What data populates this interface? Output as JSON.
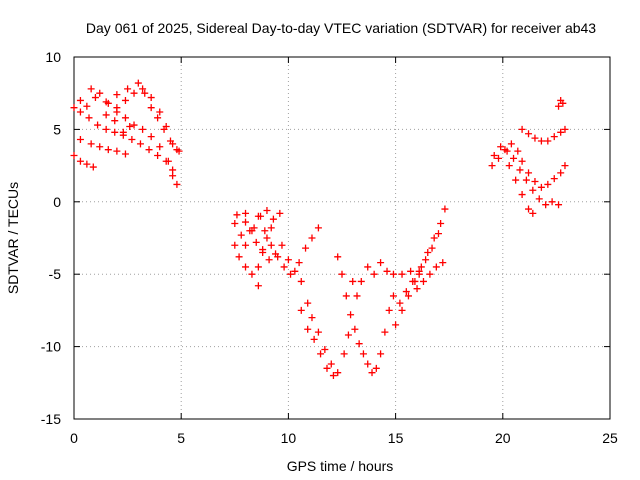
{
  "chart_data": {
    "type": "scatter",
    "title": "Day 061 of 2025, Sidereal Day-to-day VTEC variation (SDTVAR) for receiver ab43",
    "xlabel": "GPS time / hours",
    "ylabel": "SDTVAR / TECUs",
    "xlim": [
      0,
      25
    ],
    "ylim": [
      -15,
      10
    ],
    "xticks": [
      "0",
      "5",
      "10",
      "15",
      "20",
      "25"
    ],
    "yticks": [
      "-15",
      "-10",
      "-5",
      "0",
      "5",
      "10"
    ],
    "grid": true,
    "marker": "+",
    "marker_color": "#ff0000",
    "series": [
      {
        "points": [
          [
            0.0,
            6.5
          ],
          [
            0.3,
            7.0
          ],
          [
            0.6,
            6.6
          ],
          [
            1.0,
            7.2
          ],
          [
            1.5,
            6.9
          ],
          [
            2.0,
            7.4
          ],
          [
            2.5,
            7.8
          ],
          [
            3.0,
            8.2
          ],
          [
            3.3,
            7.5
          ],
          [
            3.6,
            6.5
          ],
          [
            3.9,
            5.8
          ],
          [
            4.2,
            5.0
          ],
          [
            4.5,
            4.2
          ],
          [
            4.8,
            3.6
          ]
        ]
      },
      {
        "points": [
          [
            0.8,
            7.8
          ],
          [
            1.2,
            7.5
          ],
          [
            1.6,
            6.8
          ],
          [
            2.0,
            6.2
          ],
          [
            2.4,
            5.8
          ],
          [
            2.8,
            5.3
          ],
          [
            3.2,
            5.0
          ],
          [
            3.6,
            4.5
          ],
          [
            4.0,
            3.8
          ],
          [
            4.4,
            2.8
          ],
          [
            4.6,
            1.8
          ],
          [
            4.8,
            1.2
          ]
        ]
      },
      {
        "points": [
          [
            0.3,
            6.2
          ],
          [
            0.7,
            5.8
          ],
          [
            1.1,
            5.3
          ],
          [
            1.5,
            5.0
          ],
          [
            1.9,
            4.8
          ],
          [
            2.3,
            4.6
          ],
          [
            2.7,
            4.3
          ],
          [
            3.1,
            4.0
          ],
          [
            3.5,
            3.6
          ],
          [
            3.9,
            3.2
          ],
          [
            4.3,
            2.8
          ],
          [
            4.6,
            2.2
          ]
        ]
      },
      {
        "points": [
          [
            1.5,
            6.0
          ],
          [
            2.0,
            6.5
          ],
          [
            2.4,
            7.0
          ],
          [
            2.8,
            7.5
          ],
          [
            3.2,
            7.8
          ],
          [
            3.6,
            7.2
          ],
          [
            4.0,
            6.2
          ],
          [
            4.3,
            5.2
          ],
          [
            4.6,
            4.0
          ],
          [
            4.9,
            3.5
          ]
        ]
      },
      {
        "points": [
          [
            0.0,
            3.2
          ],
          [
            0.3,
            2.8
          ],
          [
            0.6,
            2.6
          ],
          [
            0.9,
            2.4
          ]
        ]
      },
      {
        "points": [
          [
            0.3,
            4.3
          ],
          [
            0.8,
            4.0
          ],
          [
            1.2,
            3.8
          ],
          [
            1.6,
            3.6
          ],
          [
            2.0,
            3.5
          ],
          [
            2.4,
            3.3
          ],
          [
            2.3,
            4.8
          ],
          [
            2.6,
            5.2
          ],
          [
            1.9,
            5.6
          ]
        ]
      },
      {
        "points": [
          [
            7.5,
            -1.5
          ],
          [
            7.8,
            -2.3
          ],
          [
            8.0,
            -3.0
          ],
          [
            8.3,
            -2.0
          ],
          [
            8.6,
            -1.0
          ],
          [
            8.9,
            -2.0
          ],
          [
            9.2,
            -3.0
          ],
          [
            9.5,
            -3.8
          ],
          [
            9.8,
            -4.5
          ],
          [
            10.1,
            -5.0
          ],
          [
            10.5,
            -4.2
          ],
          [
            10.8,
            -3.2
          ],
          [
            11.1,
            -2.5
          ],
          [
            11.4,
            -1.8
          ]
        ]
      },
      {
        "points": [
          [
            7.5,
            -3.0
          ],
          [
            7.7,
            -3.8
          ],
          [
            8.0,
            -4.5
          ],
          [
            8.3,
            -5.0
          ],
          [
            8.6,
            -4.5
          ],
          [
            8.8,
            -3.5
          ],
          [
            9.0,
            -2.5
          ],
          [
            9.3,
            -1.2
          ],
          [
            9.6,
            -0.8
          ]
        ]
      },
      {
        "points": [
          [
            8.0,
            -0.8
          ],
          [
            8.2,
            -2.0
          ],
          [
            8.5,
            -2.8
          ],
          [
            8.8,
            -3.3
          ],
          [
            9.1,
            -4.0
          ],
          [
            9.4,
            -3.6
          ],
          [
            9.7,
            -3.0
          ]
        ]
      },
      {
        "points": [
          [
            7.6,
            -0.9
          ],
          [
            8.0,
            -1.4
          ],
          [
            8.4,
            -1.8
          ],
          [
            8.7,
            -1.0
          ],
          [
            9.0,
            -0.6
          ],
          [
            9.2,
            -1.8
          ],
          [
            8.6,
            -5.8
          ]
        ]
      },
      {
        "points": [
          [
            10.0,
            -4.0
          ],
          [
            10.3,
            -4.8
          ],
          [
            10.6,
            -5.5
          ],
          [
            10.9,
            -7.0
          ],
          [
            11.1,
            -8.0
          ],
          [
            11.4,
            -9.0
          ],
          [
            11.7,
            -10.2
          ],
          [
            12.0,
            -11.2
          ],
          [
            12.3,
            -11.8
          ],
          [
            12.6,
            -10.5
          ],
          [
            12.8,
            -9.2
          ]
        ]
      },
      {
        "points": [
          [
            10.6,
            -7.5
          ],
          [
            10.9,
            -8.8
          ],
          [
            11.2,
            -9.5
          ],
          [
            11.5,
            -10.5
          ],
          [
            11.8,
            -11.5
          ],
          [
            12.1,
            -12.0
          ]
        ]
      },
      {
        "points": [
          [
            12.3,
            -3.8
          ],
          [
            12.5,
            -5.0
          ],
          [
            12.7,
            -6.5
          ],
          [
            12.9,
            -7.8
          ],
          [
            13.1,
            -8.8
          ],
          [
            13.3,
            -9.8
          ],
          [
            13.5,
            -10.5
          ],
          [
            13.7,
            -11.2
          ],
          [
            13.9,
            -11.8
          ],
          [
            14.1,
            -11.5
          ],
          [
            14.3,
            -10.5
          ],
          [
            14.5,
            -9.0
          ],
          [
            14.7,
            -7.5
          ],
          [
            14.9,
            -6.5
          ]
        ]
      },
      {
        "points": [
          [
            13.0,
            -5.5
          ],
          [
            13.2,
            -6.5
          ],
          [
            13.4,
            -5.5
          ],
          [
            13.7,
            -4.5
          ],
          [
            14.0,
            -5.0
          ],
          [
            14.3,
            -4.2
          ],
          [
            14.6,
            -4.8
          ],
          [
            14.9,
            -5.0
          ],
          [
            15.3,
            -5.0
          ],
          [
            15.7,
            -4.8
          ],
          [
            16.1,
            -5.0
          ]
        ]
      },
      {
        "points": [
          [
            15.0,
            -8.5
          ],
          [
            15.3,
            -7.5
          ],
          [
            15.6,
            -6.5
          ],
          [
            15.9,
            -5.5
          ],
          [
            16.2,
            -4.5
          ],
          [
            16.5,
            -3.5
          ],
          [
            16.8,
            -2.5
          ],
          [
            17.1,
            -1.5
          ],
          [
            17.3,
            -0.5
          ]
        ]
      },
      {
        "points": [
          [
            15.2,
            -7.0
          ],
          [
            15.5,
            -6.2
          ],
          [
            15.8,
            -5.5
          ],
          [
            16.1,
            -4.8
          ],
          [
            16.4,
            -4.0
          ],
          [
            16.7,
            -3.2
          ],
          [
            17.0,
            -2.2
          ]
        ]
      },
      {
        "points": [
          [
            16.0,
            -6.0
          ],
          [
            16.3,
            -5.5
          ],
          [
            16.6,
            -5.0
          ],
          [
            16.9,
            -4.5
          ],
          [
            17.2,
            -4.2
          ]
        ]
      },
      {
        "points": [
          [
            19.5,
            2.5
          ],
          [
            19.8,
            3.0
          ],
          [
            20.1,
            3.6
          ],
          [
            20.4,
            4.0
          ],
          [
            20.7,
            3.5
          ],
          [
            20.9,
            2.8
          ],
          [
            21.2,
            2.0
          ],
          [
            21.5,
            1.4
          ],
          [
            21.8,
            1.0
          ],
          [
            22.1,
            1.2
          ],
          [
            22.4,
            1.6
          ],
          [
            22.7,
            2.0
          ],
          [
            22.9,
            2.5
          ]
        ]
      },
      {
        "points": [
          [
            19.6,
            3.2
          ],
          [
            19.9,
            3.8
          ],
          [
            20.2,
            3.5
          ],
          [
            20.5,
            3.0
          ],
          [
            20.8,
            2.2
          ],
          [
            21.1,
            1.5
          ],
          [
            21.4,
            0.8
          ],
          [
            21.7,
            0.2
          ],
          [
            22.0,
            -0.2
          ],
          [
            22.3,
            0.0
          ],
          [
            22.6,
            -0.2
          ]
        ]
      },
      {
        "points": [
          [
            20.3,
            2.5
          ],
          [
            20.6,
            1.5
          ],
          [
            20.9,
            0.5
          ],
          [
            21.2,
            -0.5
          ],
          [
            21.4,
            -0.8
          ]
        ]
      },
      {
        "points": [
          [
            20.9,
            5.0
          ],
          [
            21.2,
            4.7
          ],
          [
            21.5,
            4.4
          ],
          [
            21.8,
            4.2
          ],
          [
            22.1,
            4.2
          ],
          [
            22.4,
            4.5
          ],
          [
            22.7,
            4.8
          ],
          [
            22.9,
            5.0
          ]
        ]
      },
      {
        "points": [
          [
            22.6,
            6.6
          ],
          [
            22.7,
            7.0
          ],
          [
            22.8,
            6.8
          ]
        ]
      }
    ]
  }
}
